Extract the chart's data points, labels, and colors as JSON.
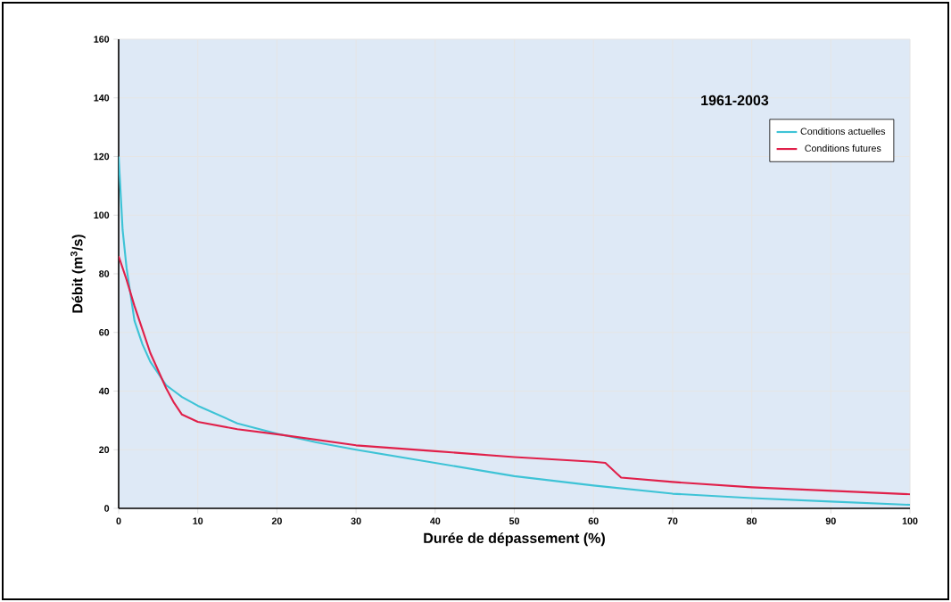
{
  "chart_data": {
    "type": "line",
    "legend_title": "1961-2003",
    "xlabel": "Durée de dépassement (%)",
    "ylabel": "Débit (m$^{3}$/s)",
    "xlim": [
      0,
      100
    ],
    "ylim": [
      0,
      160
    ],
    "xticks": [
      0,
      10,
      20,
      30,
      40,
      50,
      60,
      70,
      80,
      90,
      100
    ],
    "yticks": [
      0,
      20,
      40,
      60,
      80,
      100,
      120,
      140,
      160
    ],
    "grid": true,
    "legend": "top right",
    "marker": "none",
    "line_style": "solid",
    "series": [
      {
        "name": "Conditions actuelles",
        "color": "#3ec3d6",
        "x": [
          0,
          0.5,
          1,
          2,
          3,
          4,
          5,
          6,
          7,
          8,
          10,
          15,
          20,
          25,
          30,
          40,
          50,
          60,
          70,
          80,
          90,
          100
        ],
        "values": [
          120,
          95,
          82,
          64,
          56,
          50,
          46,
          42,
          40,
          38,
          35,
          29,
          25.5,
          22.5,
          20,
          15.5,
          11,
          7.8,
          5,
          3.5,
          2.3,
          1.2
        ]
      },
      {
        "name": "Conditions futures",
        "color": "#e0204a",
        "x": [
          0,
          1,
          2,
          3,
          4,
          5,
          6,
          7,
          8,
          10,
          15,
          20,
          30,
          40,
          50,
          60,
          61.5,
          62.5,
          63.5,
          70,
          80,
          90,
          100
        ],
        "values": [
          86,
          78,
          69,
          61,
          53,
          47,
          41,
          36,
          32,
          29.5,
          27,
          25.3,
          21.5,
          19.5,
          17.5,
          15.9,
          15.5,
          13,
          10.5,
          9,
          7.2,
          6,
          4.8
        ]
      }
    ]
  }
}
